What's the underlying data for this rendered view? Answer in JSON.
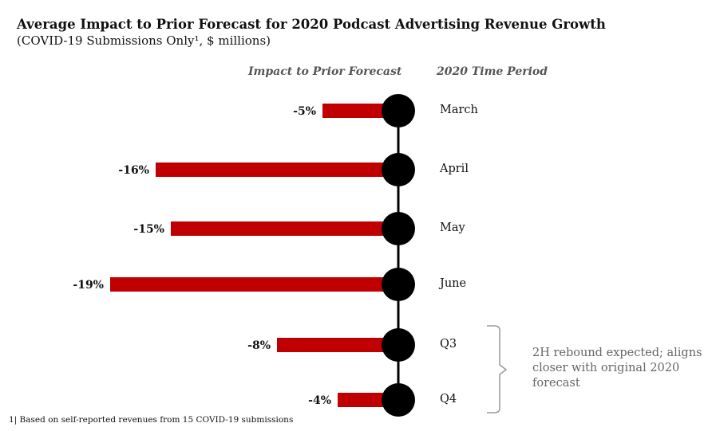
{
  "header": {
    "title": "Average Impact to Prior Forecast for 2020 Podcast Advertising Revenue Growth",
    "subtitle": "(COVID-19 Submissions Only¹, $ millions)"
  },
  "columns": {
    "impact": "Impact to Prior Forecast",
    "period": "2020 Time Period"
  },
  "annotation": "2H rebound expected; aligns closer with original 2020 forecast",
  "footnote": "1| Based on self-reported revenues from 15 COVID-19 submissions",
  "colors": {
    "bar": "#c00000",
    "marker": "#000000",
    "bracket": "#999999"
  },
  "chart_data": {
    "type": "bar",
    "orientation": "horizontal",
    "title": "Average Impact to Prior Forecast for 2020 Podcast Advertising Revenue Growth",
    "categories": [
      "March",
      "April",
      "May",
      "June",
      "Q3",
      "Q4"
    ],
    "values": [
      -5,
      -16,
      -15,
      -19,
      -8,
      -4
    ],
    "value_labels": [
      "-5%",
      "-16%",
      "-15%",
      "-19%",
      "-8%",
      "-4%"
    ],
    "unit": "%"
  }
}
